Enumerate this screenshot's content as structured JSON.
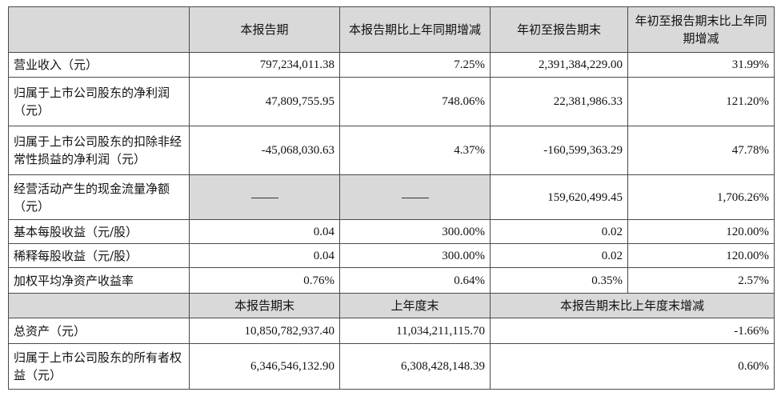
{
  "header": {
    "blank": "",
    "col1": "本报告期",
    "col2": "本报告期比上年同期增减",
    "col3": "年初至报告期末",
    "col4": "年初至报告期末比上年同期增减"
  },
  "rows": [
    {
      "label": "营业收入（元）",
      "v1": "797,234,011.38",
      "v2": "7.25%",
      "v3": "2,391,384,229.00",
      "v4": "31.99%"
    },
    {
      "label": "归属于上市公司股东的净利润（元）",
      "v1": "47,809,755.95",
      "v2": "748.06%",
      "v3": "22,381,986.33",
      "v4": "121.20%"
    },
    {
      "label": "归属于上市公司股东的扣除非经常性损益的净利润（元）",
      "v1": "-45,068,030.63",
      "v2": "4.37%",
      "v3": "-160,599,363.29",
      "v4": "47.78%"
    },
    {
      "label": "经营活动产生的现金流量净额（元）",
      "v1": "——",
      "v2": "——",
      "v3": "159,620,499.45",
      "v4": "1,706.26%"
    },
    {
      "label": "基本每股收益（元/股）",
      "v1": "0.04",
      "v2": "300.00%",
      "v3": "0.02",
      "v4": "120.00%"
    },
    {
      "label": "稀释每股收益（元/股）",
      "v1": "0.04",
      "v2": "300.00%",
      "v3": "0.02",
      "v4": "120.00%"
    },
    {
      "label": "加权平均净资产收益率",
      "v1": "0.76%",
      "v2": "0.64%",
      "v3": "0.35%",
      "v4": "2.57%"
    }
  ],
  "header2": {
    "blank": "",
    "col1": "本报告期末",
    "col2": "上年度末",
    "col3": "本报告期末比上年度末增减"
  },
  "rows2": [
    {
      "label": "总资产（元）",
      "v1": "10,850,782,937.40",
      "v2": "11,034,211,115.70",
      "v3": "-1.66%"
    },
    {
      "label": "归属于上市公司股东的所有者权益（元）",
      "v1": "6,346,546,132.90",
      "v2": "6,308,428,148.39",
      "v3": "0.60%"
    }
  ]
}
